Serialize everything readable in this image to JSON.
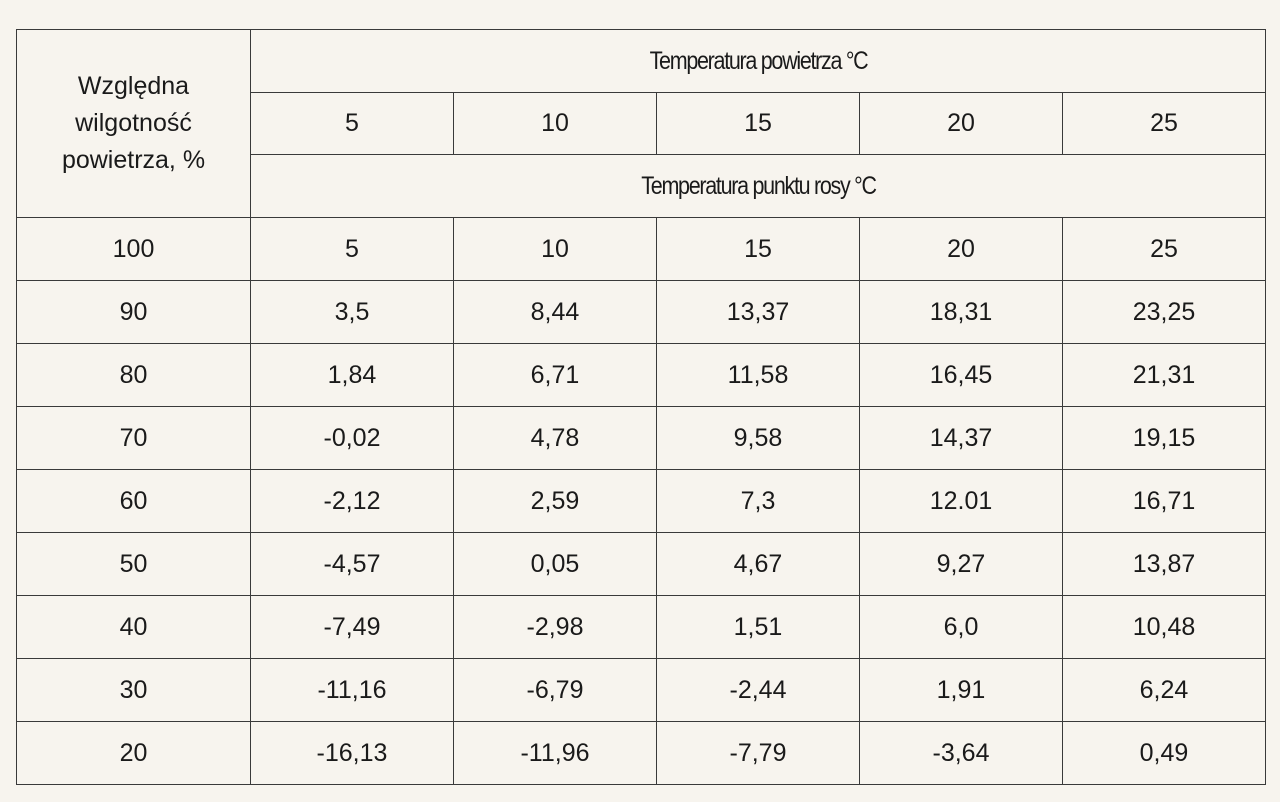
{
  "table": {
    "row_header_label": "Względna wilgotność powietrza, %",
    "air_temp_title": "Temperatura powietrza  °C",
    "dew_point_title": "Temperatura punktu rosy °C",
    "air_temps": [
      "5",
      "10",
      "15",
      "20",
      "25"
    ],
    "rows": [
      {
        "humidity": "100",
        "values": [
          "5",
          "10",
          "15",
          "20",
          "25"
        ]
      },
      {
        "humidity": "90",
        "values": [
          "3,5",
          "8,44",
          "13,37",
          "18,31",
          "23,25"
        ]
      },
      {
        "humidity": "80",
        "values": [
          "1,84",
          "6,71",
          "11,58",
          "16,45",
          "21,31"
        ]
      },
      {
        "humidity": "70",
        "values": [
          "-0,02",
          "4,78",
          "9,58",
          "14,37",
          "19,15"
        ]
      },
      {
        "humidity": "60",
        "values": [
          "-2,12",
          "2,59",
          "7,3",
          "12.01",
          "16,71"
        ]
      },
      {
        "humidity": "50",
        "values": [
          "-4,57",
          "0,05",
          "4,67",
          "9,27",
          "13,87"
        ]
      },
      {
        "humidity": "40",
        "values": [
          "-7,49",
          "-2,98",
          "1,51",
          "6,0",
          "10,48"
        ]
      },
      {
        "humidity": "30",
        "values": [
          "-11,16",
          "-6,79",
          "-2,44",
          "1,91",
          "6,24"
        ]
      },
      {
        "humidity": "20",
        "values": [
          "-16,13",
          "-11,96",
          "-7,79",
          "-3,64",
          "0,49"
        ]
      }
    ]
  }
}
